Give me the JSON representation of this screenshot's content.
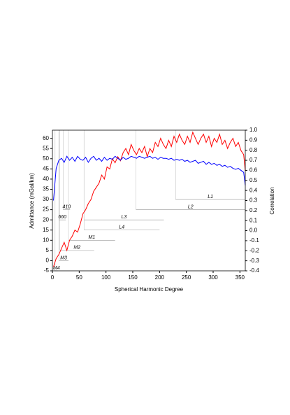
{
  "chart_data": {
    "type": "line",
    "xlabel": "Spherical Harmonic Degree",
    "ylabel": "Admittance (mGal/km)",
    "y2label": "Correlation",
    "xlim": [
      0,
      360
    ],
    "xticks": [
      0,
      50,
      100,
      150,
      200,
      250,
      300,
      350
    ],
    "ylim": [
      -5,
      64
    ],
    "yticks": [
      -5,
      0,
      5,
      10,
      15,
      20,
      25,
      30,
      35,
      40,
      45,
      50,
      55,
      60
    ],
    "y2lim": [
      -0.4,
      1.0
    ],
    "y2ticks": [
      -0.4,
      -0.3,
      -0.2,
      -0.1,
      {
        "value": 0,
        "label": "0.0"
      },
      0.1,
      0.2,
      0.3,
      0.4,
      0.5,
      0.6,
      0.7,
      0.8,
      0.9,
      {
        "value": 1,
        "label": "1.0"
      }
    ],
    "x": [
      2,
      7,
      12,
      17,
      22,
      27,
      32,
      37,
      42,
      47,
      52,
      57,
      62,
      67,
      72,
      77,
      82,
      87,
      92,
      97,
      102,
      107,
      112,
      117,
      122,
      127,
      132,
      137,
      142,
      147,
      152,
      157,
      162,
      167,
      172,
      177,
      182,
      187,
      192,
      197,
      202,
      207,
      212,
      217,
      222,
      227,
      232,
      237,
      242,
      247,
      252,
      257,
      262,
      267,
      272,
      277,
      282,
      287,
      292,
      297,
      302,
      307,
      312,
      317,
      322,
      327,
      332,
      337,
      342,
      347,
      352,
      357,
      360
    ],
    "series": [
      {
        "color": "#ff0000",
        "values": [
          -3,
          1,
          3,
          6,
          9,
          5,
          10,
          12,
          15,
          14,
          18,
          23,
          25,
          28,
          30,
          34,
          36,
          38,
          42,
          40,
          46,
          45,
          50,
          48,
          51,
          49,
          53,
          55,
          52,
          57,
          54,
          52,
          55,
          53,
          56,
          51,
          55,
          53,
          58,
          56,
          60,
          57,
          55,
          59,
          56,
          61,
          58,
          62,
          59,
          57,
          61,
          58,
          63,
          60,
          57,
          60,
          62,
          58,
          61,
          56,
          60,
          58,
          62,
          57,
          59,
          55,
          58,
          60,
          56,
          58,
          54,
          52,
          44
        ]
      },
      {
        "color": "#0000ff",
        "axis": "y2",
        "values": [
          0.3,
          0.62,
          0.7,
          0.72,
          0.68,
          0.74,
          0.7,
          0.73,
          0.69,
          0.74,
          0.71,
          0.7,
          0.73,
          0.68,
          0.72,
          0.74,
          0.7,
          0.72,
          0.69,
          0.73,
          0.7,
          0.72,
          0.71,
          0.74,
          0.72,
          0.7,
          0.73,
          0.71,
          0.72,
          0.74,
          0.73,
          0.72,
          0.74,
          0.73,
          0.72,
          0.73,
          0.74,
          0.72,
          0.73,
          0.71,
          0.73,
          0.72,
          0.72,
          0.71,
          0.72,
          0.7,
          0.71,
          0.7,
          0.71,
          0.69,
          0.7,
          0.68,
          0.69,
          0.7,
          0.67,
          0.68,
          0.69,
          0.66,
          0.68,
          0.66,
          0.67,
          0.65,
          0.66,
          0.64,
          0.65,
          0.63,
          0.64,
          0.62,
          0.61,
          0.62,
          0.6,
          0.58,
          0.45
        ]
      }
    ],
    "annotations": [
      {
        "text": "L1",
        "x": [
          230,
          360
        ],
        "y": 30
      },
      {
        "text": "L2",
        "x": [
          156,
          360
        ],
        "y": 25
      },
      {
        "text": "L3",
        "x": [
          59,
          208
        ],
        "y": 20
      },
      {
        "text": "L4",
        "x": [
          59,
          200
        ],
        "y": 15
      },
      {
        "text": "M1",
        "x": [
          30,
          117
        ],
        "y": 10
      },
      {
        "text": "M2",
        "x": [
          14,
          78
        ],
        "y": 5
      },
      {
        "text": "M3",
        "x": [
          12,
          30
        ],
        "y": 0
      },
      {
        "text": "M4",
        "x": [
          5,
          10
        ],
        "y": -5
      },
      {
        "text": "410",
        "x": [
          20,
          33
        ],
        "y": 25
      },
      {
        "text": "660",
        "x": [
          12,
          25
        ],
        "y": 20
      }
    ]
  }
}
